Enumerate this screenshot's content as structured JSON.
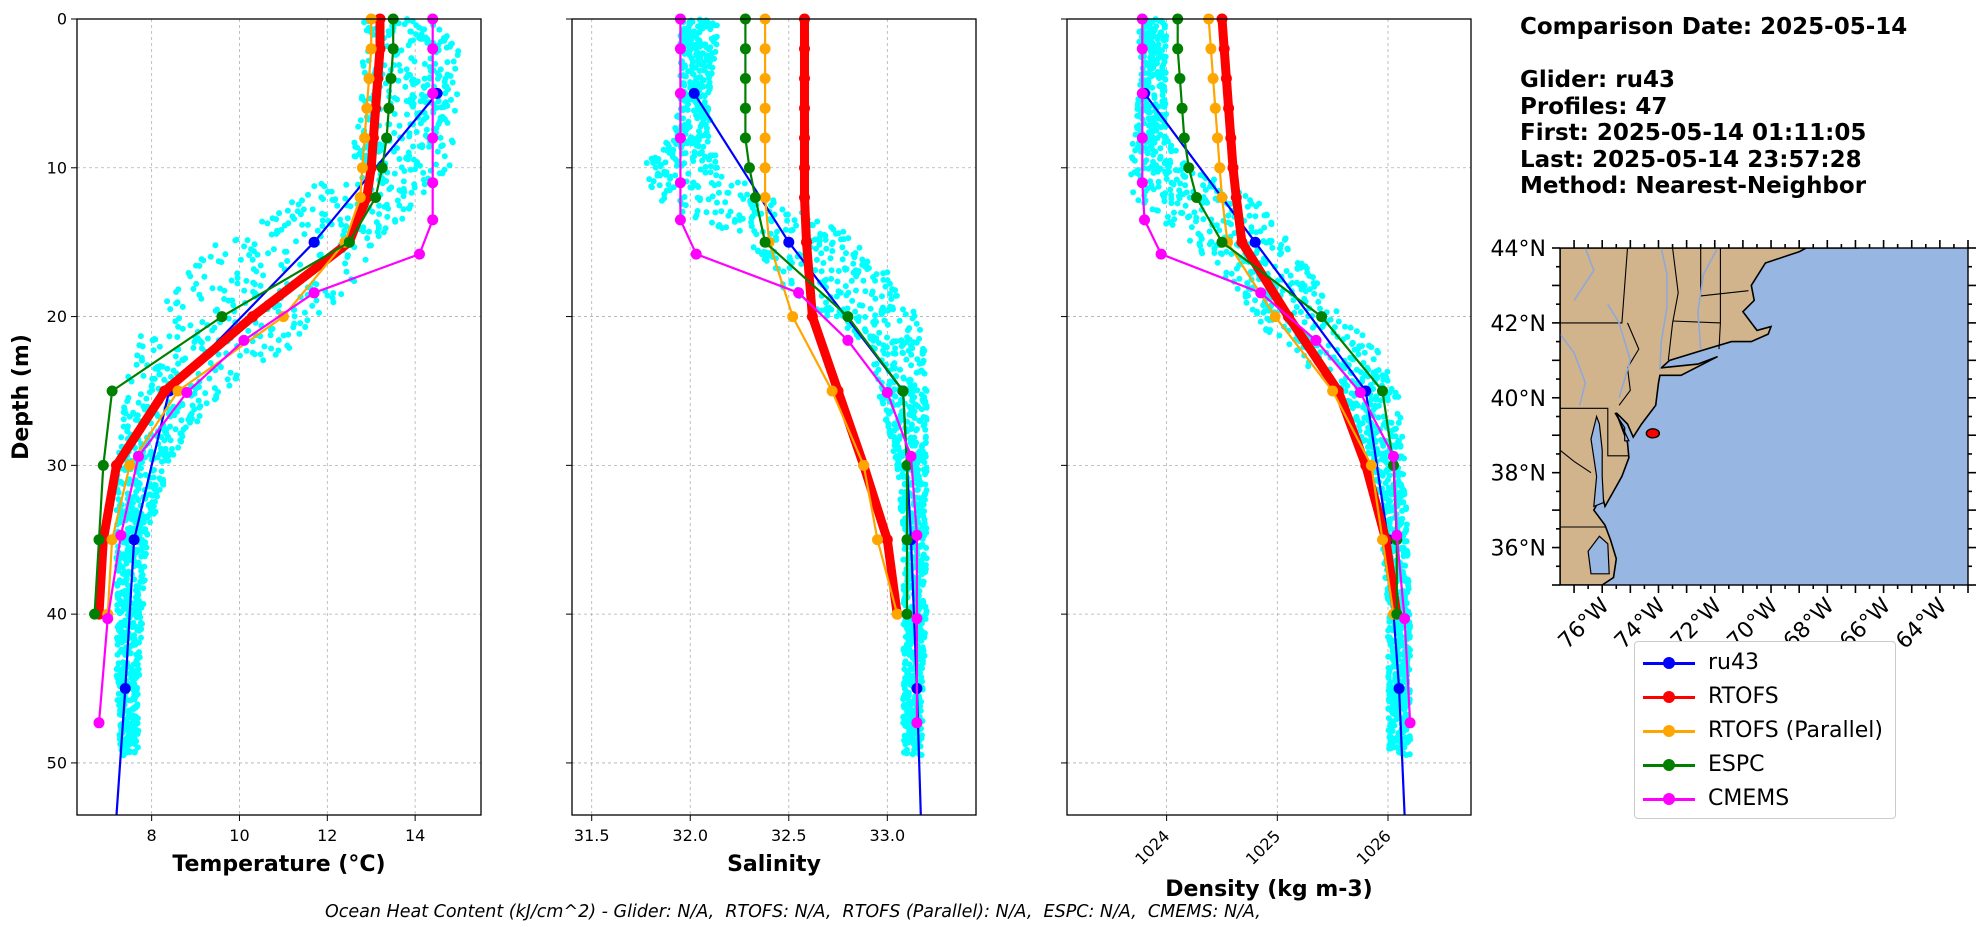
{
  "info": {
    "comparison": "Comparison Date: 2025-05-14",
    "glider": "Glider: ru43",
    "profiles": "Profiles: 47",
    "first": "First: 2025-05-14 01:11:05",
    "last": "Last: 2025-05-14 23:57:28",
    "method": "Method: Nearest-Neighbor"
  },
  "footer": "Ocean Heat Content (kJ/cm^2) - Glider: N/A,  RTOFS: N/A,  RTOFS (Parallel): N/A,  ESPC: N/A,  CMEMS: N/A,",
  "legend": [
    {
      "name": "ru43",
      "color": "#0000ff"
    },
    {
      "name": "RTOFS",
      "color": "#ff0000"
    },
    {
      "name": "RTOFS (Parallel)",
      "color": "#ffa500"
    },
    {
      "name": "ESPC",
      "color": "#008000"
    },
    {
      "name": "CMEMS",
      "color": "#ff00ff"
    }
  ],
  "chart_data": [
    {
      "type": "line",
      "xlabel": "Temperature (°C)",
      "ylabel": "Depth (m)",
      "xlim": [
        6.3,
        15.5
      ],
      "ylim": [
        53.5,
        0
      ],
      "xticks": [
        8,
        10,
        12,
        14
      ],
      "yticks": [
        0,
        10,
        20,
        30,
        40,
        50
      ],
      "grid": true,
      "glider_scatter": {
        "color": "#00ffff",
        "x_range_by_depth": [
          [
            0,
            12.8,
            15.0
          ],
          [
            5,
            12.8,
            15.0
          ],
          [
            10,
            12.5,
            14.8
          ],
          [
            12,
            11.2,
            14.2
          ],
          [
            15,
            9.5,
            13.2
          ],
          [
            18,
            8.5,
            12.6
          ],
          [
            20,
            7.8,
            12.0
          ],
          [
            22,
            7.6,
            11.2
          ],
          [
            25,
            7.4,
            9.6
          ],
          [
            28,
            7.3,
            8.8
          ],
          [
            30,
            7.2,
            8.4
          ],
          [
            35,
            7.2,
            7.9
          ],
          [
            40,
            7.2,
            7.8
          ],
          [
            45,
            7.2,
            7.7
          ],
          [
            49.5,
            7.3,
            7.7
          ]
        ]
      },
      "series": [
        {
          "name": "ru43",
          "color": "#0000ff",
          "depth": [
            5,
            15,
            25,
            35,
            45,
            53.5
          ],
          "values": [
            14.5,
            11.7,
            8.4,
            7.6,
            7.4,
            7.2
          ]
        },
        {
          "name": "RTOFS",
          "color": "#ff0000",
          "depth": [
            0,
            2,
            4,
            6,
            8,
            10,
            12,
            15,
            20,
            25,
            30,
            35,
            40
          ],
          "values": [
            13.2,
            13.2,
            13.15,
            13.1,
            13.05,
            13.0,
            12.9,
            12.5,
            10.3,
            8.3,
            7.2,
            6.9,
            6.8
          ]
        },
        {
          "name": "RTOFS (Parallel)",
          "color": "#ffa500",
          "depth": [
            0,
            2,
            4,
            6,
            8,
            10,
            12,
            15,
            20,
            25,
            30,
            35,
            40
          ],
          "values": [
            13.0,
            13.0,
            12.95,
            12.9,
            12.85,
            12.8,
            12.75,
            12.4,
            11.0,
            8.6,
            7.5,
            7.1,
            7.0
          ]
        },
        {
          "name": "ESPC",
          "color": "#008000",
          "depth": [
            0,
            2,
            4,
            6,
            8,
            10,
            12,
            15,
            20,
            25,
            30,
            35,
            40
          ],
          "values": [
            13.5,
            13.5,
            13.45,
            13.4,
            13.35,
            13.25,
            13.1,
            12.5,
            9.6,
            7.1,
            6.9,
            6.8,
            6.7
          ]
        },
        {
          "name": "CMEMS",
          "color": "#ff00ff",
          "depth": [
            0,
            2,
            5,
            8,
            11,
            13.5,
            15.8,
            18.4,
            21.6,
            25.1,
            29.4,
            34.7,
            40.3,
            47.3
          ],
          "values": [
            14.4,
            14.4,
            14.4,
            14.4,
            14.4,
            14.4,
            14.1,
            11.7,
            10.1,
            8.8,
            7.7,
            7.3,
            7.0,
            6.8
          ]
        }
      ]
    },
    {
      "type": "line",
      "xlabel": "Salinity",
      "ylabel": "",
      "xlim": [
        31.4,
        33.45
      ],
      "ylim": [
        53.5,
        0
      ],
      "xticks": [
        31.5,
        32.0,
        32.5,
        33.0
      ],
      "xticklabels": [
        "31.5",
        "32.0",
        "32.5",
        "33.0"
      ],
      "grid": true,
      "glider_scatter": {
        "color": "#00ffff",
        "x_range_by_depth": [
          [
            0,
            31.95,
            32.15
          ],
          [
            5,
            31.95,
            32.1
          ],
          [
            8,
            31.9,
            32.1
          ],
          [
            10,
            31.75,
            32.15
          ],
          [
            12,
            31.8,
            32.4
          ],
          [
            15,
            32.3,
            32.9
          ],
          [
            18,
            32.45,
            33.05
          ],
          [
            20,
            32.7,
            33.15
          ],
          [
            22,
            32.9,
            33.2
          ],
          [
            25,
            32.95,
            33.2
          ],
          [
            30,
            33.05,
            33.2
          ],
          [
            35,
            33.08,
            33.2
          ],
          [
            40,
            33.08,
            33.2
          ],
          [
            45,
            33.08,
            33.18
          ],
          [
            49.5,
            33.08,
            33.18
          ]
        ]
      },
      "series": [
        {
          "name": "ru43",
          "color": "#0000ff",
          "depth": [
            5,
            15,
            25,
            35,
            45,
            53.5
          ],
          "values": [
            32.02,
            32.5,
            33.08,
            33.12,
            33.15,
            33.17
          ]
        },
        {
          "name": "RTOFS",
          "color": "#ff0000",
          "depth": [
            0,
            2,
            4,
            6,
            8,
            10,
            12,
            15,
            20,
            25,
            30,
            35,
            40
          ],
          "values": [
            32.58,
            32.58,
            32.58,
            32.58,
            32.58,
            32.58,
            32.58,
            32.59,
            32.62,
            32.75,
            32.88,
            33.0,
            33.05
          ]
        },
        {
          "name": "RTOFS (Parallel)",
          "color": "#ffa500",
          "depth": [
            0,
            2,
            4,
            6,
            8,
            10,
            12,
            15,
            20,
            25,
            30,
            35,
            40
          ],
          "values": [
            32.38,
            32.38,
            32.38,
            32.38,
            32.38,
            32.38,
            32.38,
            32.4,
            32.52,
            32.72,
            32.88,
            32.95,
            33.05
          ]
        },
        {
          "name": "ESPC",
          "color": "#008000",
          "depth": [
            0,
            2,
            4,
            6,
            8,
            10,
            12,
            15,
            20,
            25,
            30,
            35,
            40
          ],
          "values": [
            32.28,
            32.28,
            32.28,
            32.28,
            32.28,
            32.3,
            32.33,
            32.38,
            32.8,
            33.08,
            33.1,
            33.1,
            33.1
          ]
        },
        {
          "name": "CMEMS",
          "color": "#ff00ff",
          "depth": [
            0,
            2,
            5,
            8,
            11,
            13.5,
            15.8,
            18.4,
            21.6,
            25.1,
            29.4,
            34.7,
            40.3,
            47.3
          ],
          "values": [
            31.95,
            31.95,
            31.95,
            31.95,
            31.95,
            31.95,
            32.03,
            32.55,
            32.8,
            33.0,
            33.12,
            33.15,
            33.15,
            33.15
          ]
        }
      ]
    },
    {
      "type": "line",
      "xlabel": "Density (kg m-3)",
      "ylabel": "",
      "xlim": [
        1023.1,
        1026.75
      ],
      "ylim": [
        53.5,
        0
      ],
      "xticks": [
        1024,
        1025,
        1026
      ],
      "grid": true,
      "glider_scatter": {
        "color": "#00ffff",
        "x_range_by_depth": [
          [
            0,
            1023.75,
            1024.0
          ],
          [
            5,
            1023.75,
            1024.0
          ],
          [
            8,
            1023.7,
            1024.0
          ],
          [
            10,
            1023.65,
            1024.2
          ],
          [
            12,
            1023.7,
            1024.8
          ],
          [
            15,
            1024.2,
            1025.1
          ],
          [
            18,
            1024.6,
            1025.4
          ],
          [
            20,
            1024.8,
            1025.6
          ],
          [
            22,
            1025.0,
            1025.9
          ],
          [
            25,
            1025.6,
            1026.1
          ],
          [
            30,
            1025.85,
            1026.15
          ],
          [
            35,
            1025.95,
            1026.18
          ],
          [
            40,
            1026.0,
            1026.2
          ],
          [
            45,
            1026.0,
            1026.2
          ],
          [
            49.5,
            1026.0,
            1026.2
          ]
        ]
      },
      "series": [
        {
          "name": "ru43",
          "color": "#0000ff",
          "depth": [
            5,
            15,
            25,
            35,
            45,
            53.5
          ],
          "values": [
            1023.8,
            1024.8,
            1025.8,
            1026.0,
            1026.1,
            1026.15
          ]
        },
        {
          "name": "RTOFS",
          "color": "#ff0000",
          "depth": [
            0,
            2,
            4,
            6,
            8,
            10,
            12,
            15,
            20,
            25,
            30,
            35,
            40
          ],
          "values": [
            1024.5,
            1024.52,
            1024.54,
            1024.56,
            1024.58,
            1024.6,
            1024.63,
            1024.68,
            1025.1,
            1025.55,
            1025.8,
            1025.98,
            1026.08
          ]
        },
        {
          "name": "RTOFS (Parallel)",
          "color": "#ffa500",
          "depth": [
            0,
            2,
            4,
            6,
            8,
            10,
            12,
            15,
            20,
            25,
            30,
            35,
            40
          ],
          "values": [
            1024.38,
            1024.4,
            1024.42,
            1024.44,
            1024.46,
            1024.48,
            1024.5,
            1024.55,
            1024.98,
            1025.5,
            1025.85,
            1025.95,
            1026.05
          ]
        },
        {
          "name": "ESPC",
          "color": "#008000",
          "depth": [
            0,
            2,
            4,
            6,
            8,
            10,
            12,
            15,
            20,
            25,
            30,
            35,
            40
          ],
          "values": [
            1024.1,
            1024.1,
            1024.12,
            1024.14,
            1024.16,
            1024.2,
            1024.27,
            1024.5,
            1025.4,
            1025.95,
            1026.05,
            1026.08,
            1026.08
          ]
        },
        {
          "name": "CMEMS",
          "color": "#ff00ff",
          "depth": [
            0,
            2,
            5,
            8,
            11,
            13.5,
            15.8,
            18.4,
            21.6,
            25.1,
            29.4,
            34.7,
            40.3,
            47.3
          ],
          "values": [
            1023.78,
            1023.78,
            1023.78,
            1023.78,
            1023.78,
            1023.8,
            1023.95,
            1024.85,
            1025.35,
            1025.75,
            1026.05,
            1026.08,
            1026.15,
            1026.2
          ]
        }
      ]
    }
  ],
  "map": {
    "lon_range": [
      -77.5,
      -63.0
    ],
    "lat_range": [
      35.0,
      44.0
    ],
    "lat_ticks": [
      {
        "v": 36,
        "label": "36°N"
      },
      {
        "v": 38,
        "label": "38°N"
      },
      {
        "v": 40,
        "label": "40°N"
      },
      {
        "v": 42,
        "label": "42°N"
      },
      {
        "v": 44,
        "label": "44°N"
      }
    ],
    "lon_ticks": [
      {
        "v": -76,
        "label": "76°W"
      },
      {
        "v": -74,
        "label": "74°W"
      },
      {
        "v": -72,
        "label": "72°W"
      },
      {
        "v": -70,
        "label": "70°W"
      },
      {
        "v": -68,
        "label": "68°W"
      },
      {
        "v": -66,
        "label": "66°W"
      },
      {
        "v": -64,
        "label": "64°W"
      }
    ],
    "land_color": "#d2b48c",
    "ocean_color": "#97b6e1",
    "glider_track": {
      "lon": -74.2,
      "lat": 39.05,
      "color": "#ff0000"
    }
  }
}
